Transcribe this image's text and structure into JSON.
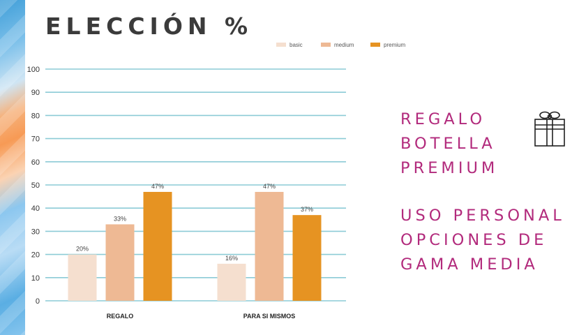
{
  "title": "ELECCIÓN %",
  "right_text": {
    "block1": [
      "REGALO",
      "BOTELLA",
      "PREMIUM"
    ],
    "block2": [
      "USO PERSONAL",
      "OPCIONES DE",
      "GAMA MEDIA"
    ]
  },
  "icons": {
    "gift": "gift-icon"
  },
  "chart_data": {
    "type": "bar",
    "categories": [
      "REGALO",
      "PARA SI MISMOS"
    ],
    "series": [
      {
        "name": "basic",
        "values": [
          20,
          16
        ],
        "labels": [
          "20%",
          "16%"
        ],
        "color": "#f5dfcf"
      },
      {
        "name": "medium",
        "values": [
          33,
          47
        ],
        "labels": [
          "33%",
          "47%"
        ],
        "color": "#eeb994"
      },
      {
        "name": "premium",
        "values": [
          47,
          37
        ],
        "labels": [
          "47%",
          "37%"
        ],
        "color": "#e69322"
      }
    ],
    "yticks": [
      0,
      10,
      20,
      30,
      40,
      50,
      60,
      70,
      80,
      90,
      100
    ],
    "ylim": [
      0,
      100
    ],
    "grid": true,
    "grid_color": "#8ccbd6",
    "legend_position": "top-right"
  }
}
